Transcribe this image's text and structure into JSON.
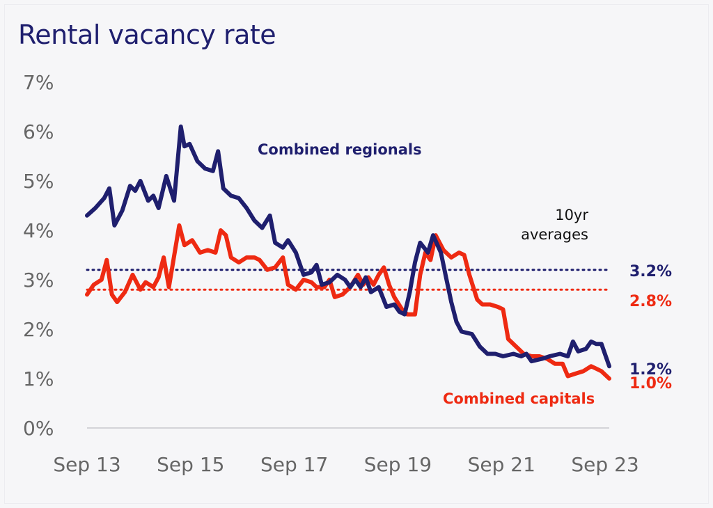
{
  "chart_data": {
    "type": "line",
    "title": "Rental vacancy rate",
    "x_tick_labels": [
      "Sep 13",
      "Sep 15",
      "Sep 17",
      "Sep 19",
      "Sep 21",
      "Sep 23"
    ],
    "y_tick_labels": [
      "0%",
      "1%",
      "2%",
      "3%",
      "4%",
      "5%",
      "6%",
      "7%"
    ],
    "ylim": [
      0,
      7
    ],
    "xlim": [
      2013.67,
      2023.75
    ],
    "grid": false,
    "legend": "inline labels",
    "annotation": [
      "10yr",
      "averages"
    ],
    "series": [
      {
        "name": "Combined regionals",
        "color": "#1f1f6e",
        "latest_label": "1.2%",
        "ten_year_average": 3.2,
        "ten_year_average_label": "3.2%",
        "points": [
          [
            2013.67,
            4.3
          ],
          [
            2013.83,
            4.45
          ],
          [
            2014.0,
            4.65
          ],
          [
            2014.1,
            4.85
          ],
          [
            2014.2,
            4.1
          ],
          [
            2014.35,
            4.4
          ],
          [
            2014.5,
            4.9
          ],
          [
            2014.6,
            4.8
          ],
          [
            2014.7,
            5.0
          ],
          [
            2014.85,
            4.6
          ],
          [
            2014.95,
            4.7
          ],
          [
            2015.05,
            4.45
          ],
          [
            2015.2,
            5.1
          ],
          [
            2015.35,
            4.6
          ],
          [
            2015.48,
            6.1
          ],
          [
            2015.55,
            5.7
          ],
          [
            2015.65,
            5.75
          ],
          [
            2015.8,
            5.4
          ],
          [
            2015.95,
            5.25
          ],
          [
            2016.1,
            5.2
          ],
          [
            2016.2,
            5.6
          ],
          [
            2016.3,
            4.85
          ],
          [
            2016.45,
            4.7
          ],
          [
            2016.6,
            4.65
          ],
          [
            2016.75,
            4.45
          ],
          [
            2016.9,
            4.2
          ],
          [
            2017.05,
            4.05
          ],
          [
            2017.2,
            4.3
          ],
          [
            2017.3,
            3.75
          ],
          [
            2017.45,
            3.65
          ],
          [
            2017.55,
            3.8
          ],
          [
            2017.7,
            3.55
          ],
          [
            2017.85,
            3.1
          ],
          [
            2018.0,
            3.15
          ],
          [
            2018.1,
            3.3
          ],
          [
            2018.2,
            2.9
          ],
          [
            2018.35,
            2.95
          ],
          [
            2018.5,
            3.1
          ],
          [
            2018.65,
            3.0
          ],
          [
            2018.75,
            2.85
          ],
          [
            2018.85,
            3.0
          ],
          [
            2018.95,
            2.85
          ],
          [
            2019.05,
            3.05
          ],
          [
            2019.15,
            2.75
          ],
          [
            2019.3,
            2.85
          ],
          [
            2019.45,
            2.45
          ],
          [
            2019.6,
            2.5
          ],
          [
            2019.7,
            2.35
          ],
          [
            2019.8,
            2.3
          ],
          [
            2019.9,
            2.75
          ],
          [
            2020.0,
            3.35
          ],
          [
            2020.1,
            3.75
          ],
          [
            2020.25,
            3.55
          ],
          [
            2020.35,
            3.9
          ],
          [
            2020.5,
            3.55
          ],
          [
            2020.6,
            3.05
          ],
          [
            2020.7,
            2.55
          ],
          [
            2020.8,
            2.15
          ],
          [
            2020.9,
            1.95
          ],
          [
            2021.1,
            1.9
          ],
          [
            2021.25,
            1.65
          ],
          [
            2021.4,
            1.5
          ],
          [
            2021.55,
            1.5
          ],
          [
            2021.7,
            1.45
          ],
          [
            2021.9,
            1.5
          ],
          [
            2022.05,
            1.45
          ],
          [
            2022.15,
            1.5
          ],
          [
            2022.25,
            1.35
          ],
          [
            2022.45,
            1.4
          ],
          [
            2022.6,
            1.45
          ],
          [
            2022.8,
            1.5
          ],
          [
            2022.95,
            1.45
          ],
          [
            2023.05,
            1.75
          ],
          [
            2023.15,
            1.55
          ],
          [
            2023.3,
            1.6
          ],
          [
            2023.4,
            1.75
          ],
          [
            2023.5,
            1.7
          ],
          [
            2023.6,
            1.7
          ],
          [
            2023.75,
            1.25
          ]
        ]
      },
      {
        "name": "Combined capitals",
        "color": "#ee2a12",
        "latest_label": "1.0%",
        "ten_year_average": 2.8,
        "ten_year_average_label": "2.8%",
        "points": [
          [
            2013.67,
            2.7
          ],
          [
            2013.8,
            2.9
          ],
          [
            2013.95,
            3.0
          ],
          [
            2014.05,
            3.4
          ],
          [
            2014.15,
            2.7
          ],
          [
            2014.25,
            2.55
          ],
          [
            2014.4,
            2.75
          ],
          [
            2014.55,
            3.1
          ],
          [
            2014.7,
            2.8
          ],
          [
            2014.8,
            2.95
          ],
          [
            2014.95,
            2.85
          ],
          [
            2015.05,
            3.05
          ],
          [
            2015.15,
            3.45
          ],
          [
            2015.25,
            2.85
          ],
          [
            2015.45,
            4.1
          ],
          [
            2015.55,
            3.7
          ],
          [
            2015.7,
            3.8
          ],
          [
            2015.85,
            3.55
          ],
          [
            2016.0,
            3.6
          ],
          [
            2016.15,
            3.55
          ],
          [
            2016.25,
            4.0
          ],
          [
            2016.35,
            3.9
          ],
          [
            2016.45,
            3.45
          ],
          [
            2016.6,
            3.35
          ],
          [
            2016.75,
            3.45
          ],
          [
            2016.9,
            3.45
          ],
          [
            2017.0,
            3.4
          ],
          [
            2017.15,
            3.2
          ],
          [
            2017.3,
            3.25
          ],
          [
            2017.45,
            3.45
          ],
          [
            2017.55,
            2.9
          ],
          [
            2017.7,
            2.8
          ],
          [
            2017.85,
            3.0
          ],
          [
            2018.0,
            2.95
          ],
          [
            2018.1,
            2.85
          ],
          [
            2018.25,
            2.85
          ],
          [
            2018.35,
            3.0
          ],
          [
            2018.45,
            2.65
          ],
          [
            2018.6,
            2.7
          ],
          [
            2018.75,
            2.85
          ],
          [
            2018.9,
            3.1
          ],
          [
            2019.0,
            2.9
          ],
          [
            2019.1,
            3.05
          ],
          [
            2019.2,
            2.9
          ],
          [
            2019.3,
            3.1
          ],
          [
            2019.4,
            3.25
          ],
          [
            2019.5,
            2.9
          ],
          [
            2019.6,
            2.65
          ],
          [
            2019.75,
            2.4
          ],
          [
            2019.85,
            2.3
          ],
          [
            2020.0,
            2.3
          ],
          [
            2020.1,
            3.1
          ],
          [
            2020.2,
            3.55
          ],
          [
            2020.3,
            3.4
          ],
          [
            2020.4,
            3.9
          ],
          [
            2020.55,
            3.6
          ],
          [
            2020.7,
            3.45
          ],
          [
            2020.85,
            3.55
          ],
          [
            2020.95,
            3.5
          ],
          [
            2021.05,
            3.1
          ],
          [
            2021.2,
            2.6
          ],
          [
            2021.3,
            2.5
          ],
          [
            2021.45,
            2.5
          ],
          [
            2021.6,
            2.45
          ],
          [
            2021.7,
            2.4
          ],
          [
            2021.8,
            1.8
          ],
          [
            2021.95,
            1.65
          ],
          [
            2022.1,
            1.5
          ],
          [
            2022.25,
            1.45
          ],
          [
            2022.4,
            1.45
          ],
          [
            2022.55,
            1.4
          ],
          [
            2022.7,
            1.3
          ],
          [
            2022.85,
            1.3
          ],
          [
            2022.95,
            1.05
          ],
          [
            2023.1,
            1.1
          ],
          [
            2023.25,
            1.15
          ],
          [
            2023.4,
            1.25
          ],
          [
            2023.5,
            1.2
          ],
          [
            2023.6,
            1.15
          ],
          [
            2023.75,
            1.0
          ]
        ]
      }
    ]
  }
}
